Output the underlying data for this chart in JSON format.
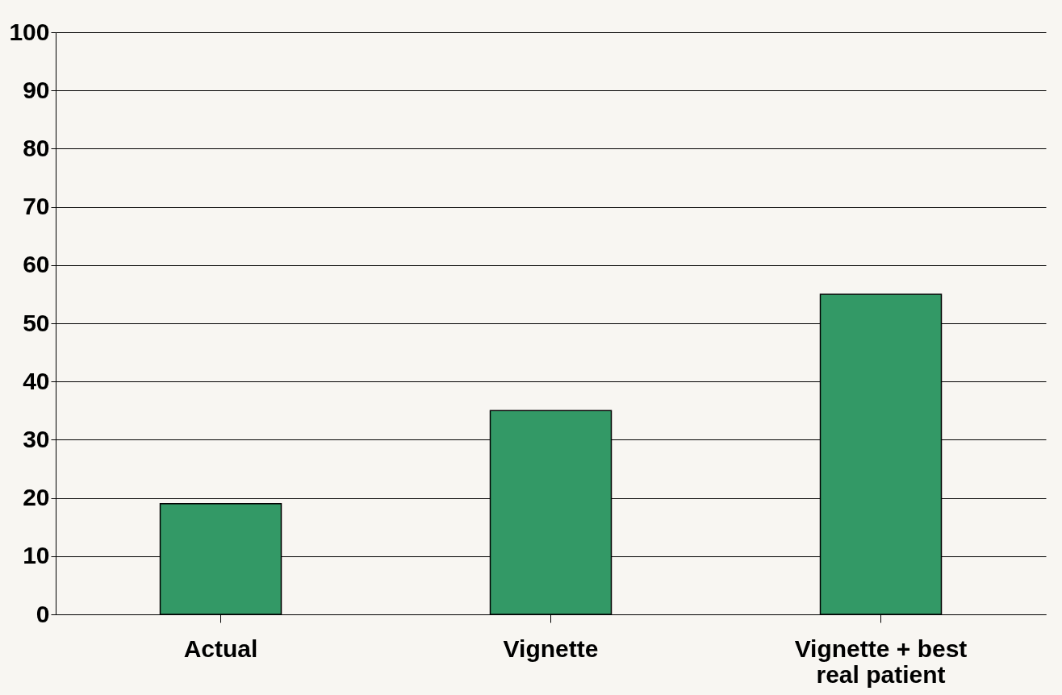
{
  "chart_data": {
    "type": "bar",
    "categories": [
      "Actual",
      "Vignette",
      "Vignette + best\nreal patient"
    ],
    "values": [
      19,
      35,
      55
    ],
    "color": "#339966",
    "ylim": [
      0,
      100
    ],
    "yticks": [
      0,
      10,
      20,
      30,
      40,
      50,
      60,
      70,
      80,
      90,
      100
    ],
    "grid": "y"
  }
}
